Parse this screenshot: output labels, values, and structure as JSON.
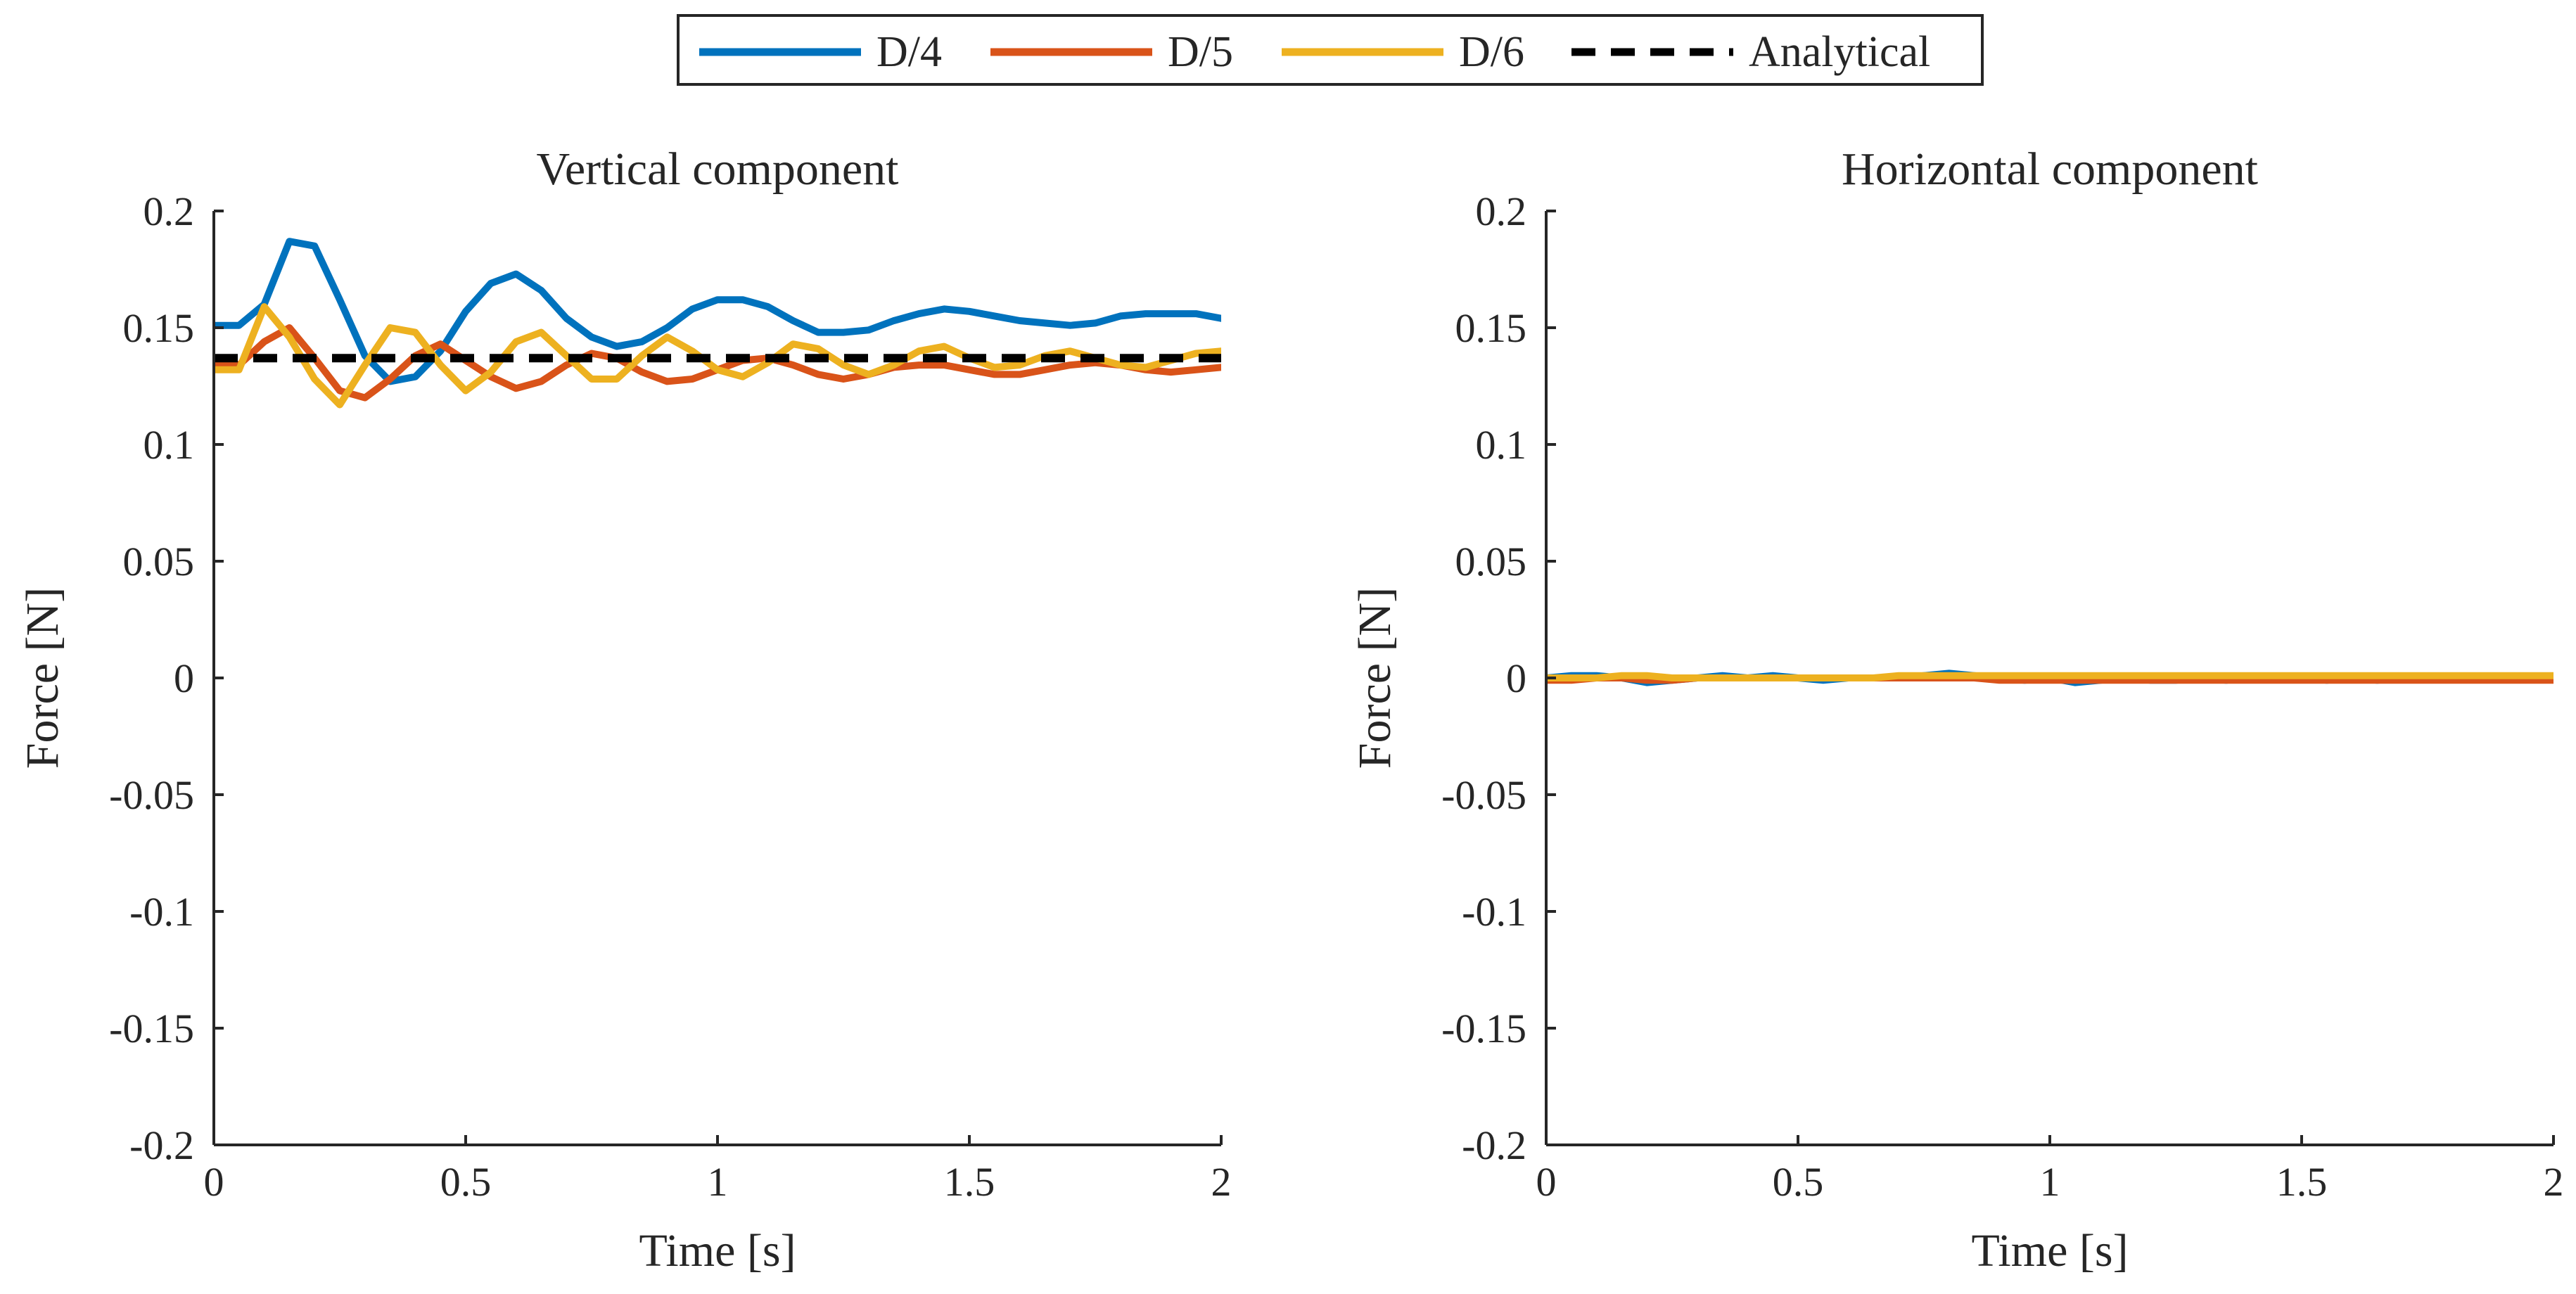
{
  "legend": {
    "entries": [
      {
        "label": "D/4",
        "color": "#0072BD",
        "dash": false
      },
      {
        "label": "D/5",
        "color": "#D95319",
        "dash": false
      },
      {
        "label": "D/6",
        "color": "#EDB120",
        "dash": false
      },
      {
        "label": "Analytical",
        "color": "#000000",
        "dash": true
      }
    ],
    "placement": "top-center"
  },
  "chart_data": [
    {
      "type": "line",
      "title": "Vertical component",
      "xlabel": "Time [s]",
      "ylabel": "Force [N]",
      "xlim": [
        0,
        2
      ],
      "ylim": [
        -0.2,
        0.2
      ],
      "xticks": [
        0,
        0.5,
        1,
        1.5,
        2
      ],
      "xtick_labels": [
        "0",
        "0.5",
        "1",
        "1.5",
        "2"
      ],
      "yticks": [
        -0.2,
        -0.15,
        -0.1,
        -0.05,
        0,
        0.05,
        0.1,
        0.15,
        0.2
      ],
      "ytick_labels": [
        "-0.2",
        "-0.15",
        "-0.1",
        "-0.05",
        "0",
        "0.05",
        "0.1",
        "0.15",
        "0.2"
      ],
      "grid": false,
      "x": [
        0,
        0.05,
        0.1,
        0.15,
        0.2,
        0.25,
        0.3,
        0.35,
        0.4,
        0.45,
        0.5,
        0.55,
        0.6,
        0.65,
        0.7,
        0.75,
        0.8,
        0.85,
        0.9,
        0.95,
        1.0,
        1.05,
        1.1,
        1.15,
        1.2,
        1.25,
        1.3,
        1.35,
        1.4,
        1.45,
        1.5,
        1.55,
        1.6,
        1.65,
        1.7,
        1.75,
        1.8,
        1.85,
        1.9,
        1.95,
        2.0
      ],
      "series": [
        {
          "name": "D/4",
          "color": "#0072BD",
          "values": [
            0.151,
            0.151,
            0.16,
            0.187,
            0.185,
            0.162,
            0.138,
            0.127,
            0.129,
            0.14,
            0.157,
            0.169,
            0.173,
            0.166,
            0.154,
            0.146,
            0.142,
            0.144,
            0.15,
            0.158,
            0.162,
            0.162,
            0.159,
            0.153,
            0.148,
            0.148,
            0.149,
            0.153,
            0.156,
            0.158,
            0.157,
            0.155,
            0.153,
            0.152,
            0.151,
            0.152,
            0.155,
            0.156,
            0.156,
            0.156,
            0.154
          ]
        },
        {
          "name": "D/5",
          "color": "#D95319",
          "values": [
            0.135,
            0.134,
            0.144,
            0.15,
            0.137,
            0.123,
            0.12,
            0.128,
            0.138,
            0.143,
            0.136,
            0.129,
            0.124,
            0.127,
            0.134,
            0.139,
            0.137,
            0.131,
            0.127,
            0.128,
            0.132,
            0.136,
            0.137,
            0.134,
            0.13,
            0.128,
            0.13,
            0.133,
            0.134,
            0.134,
            0.132,
            0.13,
            0.13,
            0.132,
            0.134,
            0.135,
            0.134,
            0.132,
            0.131,
            0.132,
            0.133
          ]
        },
        {
          "name": "D/6",
          "color": "#EDB120",
          "values": [
            0.132,
            0.132,
            0.159,
            0.146,
            0.128,
            0.117,
            0.134,
            0.15,
            0.148,
            0.134,
            0.123,
            0.131,
            0.144,
            0.148,
            0.138,
            0.128,
            0.128,
            0.138,
            0.146,
            0.14,
            0.132,
            0.129,
            0.135,
            0.143,
            0.141,
            0.134,
            0.13,
            0.134,
            0.14,
            0.142,
            0.137,
            0.133,
            0.134,
            0.138,
            0.14,
            0.137,
            0.134,
            0.133,
            0.136,
            0.139,
            0.14
          ]
        },
        {
          "name": "Analytical",
          "color": "#000000",
          "dash": true,
          "values": [
            0.137,
            0.137,
            0.137,
            0.137,
            0.137,
            0.137,
            0.137,
            0.137,
            0.137,
            0.137,
            0.137,
            0.137,
            0.137,
            0.137,
            0.137,
            0.137,
            0.137,
            0.137,
            0.137,
            0.137,
            0.137,
            0.137,
            0.137,
            0.137,
            0.137,
            0.137,
            0.137,
            0.137,
            0.137,
            0.137,
            0.137,
            0.137,
            0.137,
            0.137,
            0.137,
            0.137,
            0.137,
            0.137,
            0.137,
            0.137,
            0.137
          ]
        }
      ]
    },
    {
      "type": "line",
      "title": "Horizontal component",
      "xlabel": "Time [s]",
      "ylabel": "Force [N]",
      "xlim": [
        0,
        2
      ],
      "ylim": [
        -0.2,
        0.2
      ],
      "xticks": [
        0,
        0.5,
        1,
        1.5,
        2
      ],
      "xtick_labels": [
        "0",
        "0.5",
        "1",
        "1.5",
        "2"
      ],
      "yticks": [
        -0.2,
        -0.15,
        -0.1,
        -0.05,
        0,
        0.05,
        0.1,
        0.15,
        0.2
      ],
      "ytick_labels": [
        "-0.2",
        "-0.15",
        "-0.1",
        "-0.05",
        "0",
        "0.05",
        "0.1",
        "0.15",
        "0.2"
      ],
      "grid": false,
      "x": [
        0,
        0.05,
        0.1,
        0.15,
        0.2,
        0.25,
        0.3,
        0.35,
        0.4,
        0.45,
        0.5,
        0.55,
        0.6,
        0.65,
        0.7,
        0.75,
        0.8,
        0.85,
        0.9,
        0.95,
        1.0,
        1.05,
        1.1,
        1.15,
        1.2,
        1.25,
        1.3,
        1.35,
        1.4,
        1.45,
        1.5,
        1.55,
        1.6,
        1.65,
        1.7,
        1.75,
        1.8,
        1.85,
        1.9,
        1.95,
        2.0
      ],
      "series": [
        {
          "name": "D/4",
          "color": "#0072BD",
          "values": [
            0.0,
            0.001,
            0.001,
            0.0,
            -0.002,
            -0.001,
            0.0,
            0.001,
            0.0,
            0.001,
            0.0,
            -0.001,
            0.0,
            0.0,
            0.0,
            0.001,
            0.002,
            0.001,
            0.0,
            -0.001,
            0.0,
            -0.002,
            -0.001,
            0.0,
            -0.001,
            -0.001,
            0.0,
            -0.001,
            0.0,
            0.0,
            0.0,
            -0.001,
            0.0,
            -0.001,
            0.0,
            0.0,
            0.0,
            0.0,
            0.0,
            0.0,
            0.0
          ]
        },
        {
          "name": "D/5",
          "color": "#D95319",
          "values": [
            -0.001,
            -0.001,
            0.0,
            0.0,
            -0.001,
            -0.001,
            0.0,
            0.0,
            0.0,
            0.0,
            0.0,
            0.0,
            0.0,
            0.0,
            0.0,
            0.0,
            0.0,
            0.0,
            -0.001,
            -0.001,
            -0.001,
            -0.001,
            -0.001,
            -0.001,
            -0.001,
            -0.001,
            -0.001,
            -0.001,
            -0.001,
            -0.001,
            -0.001,
            -0.001,
            -0.001,
            -0.001,
            -0.001,
            -0.001,
            -0.001,
            -0.001,
            -0.001,
            -0.001,
            -0.001
          ]
        },
        {
          "name": "D/6",
          "color": "#EDB120",
          "values": [
            0.0,
            0.0,
            0.0,
            0.001,
            0.001,
            0.0,
            0.0,
            0.0,
            0.0,
            0.0,
            0.0,
            0.0,
            0.0,
            0.0,
            0.001,
            0.001,
            0.001,
            0.001,
            0.001,
            0.001,
            0.001,
            0.001,
            0.001,
            0.001,
            0.001,
            0.001,
            0.001,
            0.001,
            0.001,
            0.001,
            0.001,
            0.001,
            0.001,
            0.001,
            0.001,
            0.001,
            0.001,
            0.001,
            0.001,
            0.001,
            0.001
          ]
        }
      ]
    }
  ]
}
